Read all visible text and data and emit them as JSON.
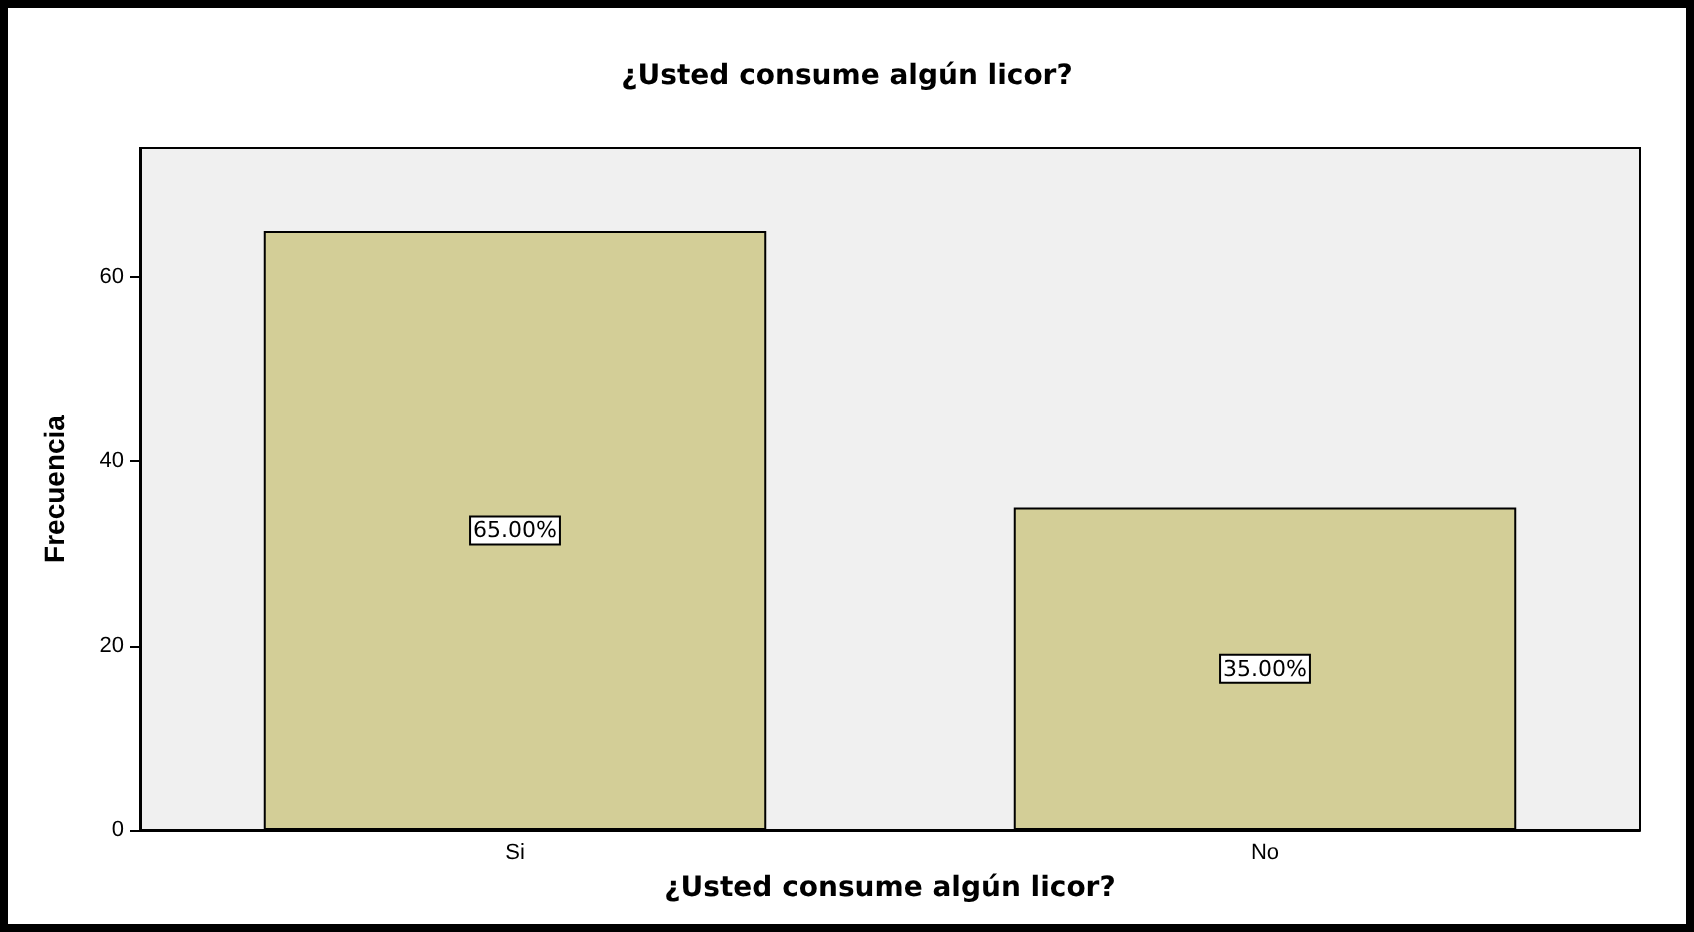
{
  "chart_data": {
    "type": "bar",
    "title": "¿Usted consume algún licor?",
    "xlabel": "¿Usted consume algún licor?",
    "ylabel": "Frecuencia",
    "categories": [
      "Si",
      "No"
    ],
    "values": [
      65,
      35
    ],
    "value_labels": [
      "65.00%",
      "35.00%"
    ],
    "color": "#d3ce97",
    "ylim": [
      0,
      74
    ],
    "yticks": [
      0,
      20,
      40,
      60
    ],
    "grid": false
  }
}
